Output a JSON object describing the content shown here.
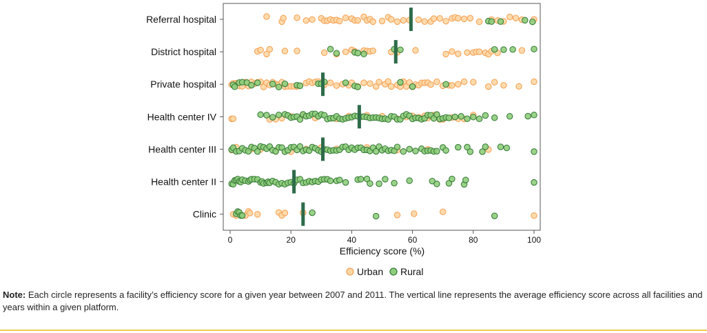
{
  "chart_data": {
    "type": "scatter",
    "subtype": "jittered strip plot with group mean markers",
    "xlabel": "Efficiency score (%)",
    "xlim": [
      0,
      100
    ],
    "xticks": [
      0,
      20,
      40,
      60,
      80,
      100
    ],
    "grid": false,
    "legend_position": "bottom",
    "categories": [
      "Referral hospital",
      "District hospital",
      "Private hospital",
      "Health center IV",
      "Health center III",
      "Health center II",
      "Clinic"
    ],
    "means": [
      59.5,
      54.5,
      30.5,
      42.5,
      30.5,
      21,
      24
    ],
    "series": [
      {
        "name": "Urban",
        "color": "#fcd7a4",
        "stroke": "#f5a35a",
        "points": {
          "Referral hospital": [
            12,
            17,
            17.5,
            22,
            25,
            27,
            30,
            31,
            32,
            33,
            34,
            35,
            36,
            38,
            40,
            41,
            42,
            44,
            45,
            46,
            47,
            50,
            52,
            53,
            55,
            57,
            59,
            62,
            64,
            66,
            67,
            69,
            71,
            73,
            74,
            75,
            77,
            79,
            82,
            86,
            88,
            90,
            92,
            94,
            96,
            100
          ],
          "District hospital": [
            9,
            10,
            12,
            13,
            18,
            22,
            31,
            35,
            38,
            40,
            41,
            44,
            45,
            46,
            47,
            53,
            55,
            61,
            71,
            73,
            75,
            78,
            80,
            81,
            82,
            84,
            85,
            86,
            88,
            96
          ],
          "Private hospital": [
            0.5,
            1,
            2,
            2.5,
            3,
            4,
            5,
            6,
            7,
            8,
            9,
            10,
            11,
            12,
            13,
            14,
            15,
            16,
            17,
            18,
            19,
            20,
            21,
            22,
            23,
            25,
            26,
            27,
            28,
            29,
            31,
            33,
            35,
            37,
            39,
            40,
            42,
            44,
            46,
            48,
            49,
            51,
            52,
            53,
            55,
            56,
            57,
            58,
            59,
            60,
            61,
            62,
            63,
            64,
            65,
            66,
            68,
            70,
            72,
            73,
            75,
            77,
            80,
            85,
            87,
            90,
            95,
            100
          ],
          "Health center IV": [
            0.5,
            1,
            13,
            15,
            17,
            20,
            24,
            28,
            35,
            39,
            45,
            50,
            55,
            58,
            60,
            62,
            63,
            64,
            65,
            66,
            67,
            68,
            69,
            70,
            73,
            75,
            77,
            80
          ],
          "Health center III": [
            0.5,
            2,
            7,
            10,
            15,
            20,
            25,
            30,
            35,
            45,
            55,
            65,
            85
          ],
          "Health center II": [],
          "Clinic": [
            1,
            2,
            3,
            5,
            6,
            6.5,
            9,
            16,
            17,
            18,
            24,
            55,
            60.5,
            70,
            100
          ]
        }
      },
      {
        "name": "Rural",
        "color": "#8fce7c",
        "stroke": "#3b7d3b",
        "points": {
          "Referral hospital": [
            85,
            86,
            89,
            97,
            99.5
          ],
          "District hospital": [
            33,
            35,
            41,
            42,
            44,
            54,
            56,
            87,
            90,
            93,
            100
          ],
          "Private hospital": [
            1,
            1.5,
            3,
            4,
            5.5,
            7,
            9,
            14,
            16,
            18,
            22,
            23,
            29,
            30,
            31,
            38,
            41,
            42,
            56,
            60,
            71
          ],
          "Health center IV": [
            10,
            12,
            14,
            16,
            18,
            19,
            20,
            21,
            22,
            23,
            24,
            25,
            26,
            27,
            28,
            29,
            30,
            31,
            32,
            33,
            34,
            35,
            36,
            37,
            38,
            39,
            40,
            41,
            42,
            43,
            44,
            45,
            46,
            47,
            48,
            49,
            50,
            51,
            52,
            53,
            54,
            55,
            56,
            57,
            58,
            59,
            60,
            61,
            62,
            63,
            64,
            65,
            66,
            67,
            68,
            69,
            70,
            71,
            72,
            74,
            76,
            78,
            80,
            82,
            84,
            87,
            92,
            98,
            100
          ],
          "Health center III": [
            0.5,
            1,
            2,
            3,
            4,
            5,
            6,
            7,
            8,
            9,
            10,
            11,
            12,
            13,
            14,
            15,
            16,
            17,
            18,
            19,
            20,
            21,
            22,
            23,
            24,
            25,
            26,
            27,
            28,
            29,
            30,
            31,
            32,
            33,
            34,
            35,
            36,
            37,
            38,
            39,
            40,
            41,
            42,
            43,
            44,
            45,
            46,
            47,
            48,
            49,
            50,
            51,
            52,
            53,
            54,
            55,
            57,
            59,
            61,
            63,
            64,
            65,
            66,
            67,
            68,
            70,
            71,
            75,
            78,
            79,
            83,
            84,
            89,
            91,
            100
          ],
          "Health center II": [
            0.5,
            1,
            1.5,
            2,
            2.5,
            3,
            3.5,
            4,
            5,
            6,
            6.5,
            7,
            8,
            9,
            10,
            10.5,
            11,
            12,
            12.5,
            13,
            14,
            15,
            16,
            17,
            18,
            19,
            20,
            21,
            22,
            23,
            24,
            25,
            26,
            27,
            28,
            29,
            30,
            31,
            32,
            33,
            35,
            36,
            38,
            42,
            43,
            45,
            46,
            49,
            51,
            54,
            59,
            66.5,
            68,
            72,
            73,
            77,
            77.5,
            100
          ],
          "Clinic": [
            2,
            2.5,
            3,
            3.5,
            4,
            27,
            48,
            87
          ]
        }
      }
    ]
  },
  "note": {
    "label": "Note:",
    "text": "Each circle represents a facility’s efficiency score for a given year between 2007 and 2011. The vertical line represents the average efficiency score across all facilities and years within a given platform."
  },
  "colors": {
    "mean_line": "#2e6b4a",
    "axis": "#555555",
    "rule": "#f2c94c"
  }
}
